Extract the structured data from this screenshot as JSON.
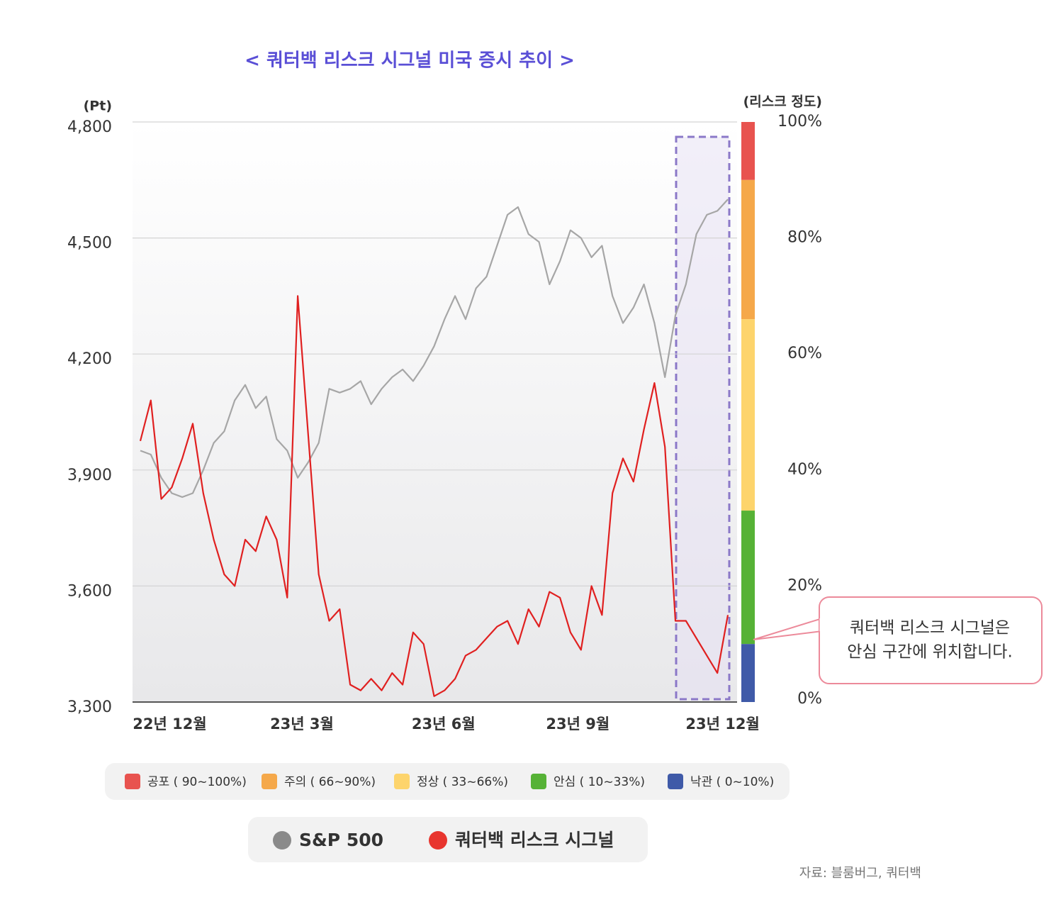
{
  "chart_data": {
    "type": "line",
    "title": "< 쿼터백 리스크 시그널 미국 증시 추이 >",
    "y_label": "(Pt)",
    "y2_label": "(리스크 정도)",
    "xlim": [
      0,
      56
    ],
    "xticks": [
      {
        "value": 2.8,
        "label": "22년 12월"
      },
      {
        "value": 15.4,
        "label": "23년 3월"
      },
      {
        "value": 28.9,
        "label": "23년  6월"
      },
      {
        "value": 41.7,
        "label": "23년 9월"
      },
      {
        "value": 55.5,
        "label": "23년 12월"
      }
    ],
    "ylim": [
      3300,
      4800
    ],
    "yticks": [
      {
        "value": 3300,
        "label": "3,300"
      },
      {
        "value": 3600,
        "label": "3,600"
      },
      {
        "value": 3900,
        "label": "3,900"
      },
      {
        "value": 4200,
        "label": "4,200"
      },
      {
        "value": 4500,
        "label": "4,500"
      },
      {
        "value": 4800,
        "label": "4,800"
      }
    ],
    "y2lim": [
      0,
      100
    ],
    "y2ticks": [
      {
        "value": 0,
        "label": "0%"
      },
      {
        "value": 20,
        "label": "20%"
      },
      {
        "value": 40,
        "label": "40%"
      },
      {
        "value": 60,
        "label": "60%"
      },
      {
        "value": 80,
        "label": "80%"
      },
      {
        "value": 100,
        "label": "100%"
      }
    ],
    "grid": true,
    "series": [
      {
        "name": "S&P 500",
        "color": "#a6a6a6",
        "axis": "y",
        "values": [
          3950,
          3940,
          3880,
          3840,
          3830,
          3840,
          3900,
          3970,
          4000,
          4080,
          4120,
          4060,
          4090,
          3980,
          3950,
          3880,
          3920,
          3970,
          4110,
          4100,
          4110,
          4130,
          4070,
          4110,
          4140,
          4160,
          4130,
          4170,
          4220,
          4290,
          4350,
          4290,
          4370,
          4400,
          4480,
          4560,
          4580,
          4510,
          4490,
          4380,
          4440,
          4520,
          4500,
          4450,
          4480,
          4350,
          4280,
          4320,
          4380,
          4280,
          4140,
          4300,
          4380,
          4510,
          4560,
          4570,
          4600
        ]
      },
      {
        "name": "쿼터백 리스크 시그널",
        "color": "#e02020",
        "axis": "y2",
        "values": [
          45,
          52,
          35,
          37,
          42,
          48,
          36,
          28,
          22,
          20,
          28,
          26,
          32,
          28,
          18,
          70,
          46,
          22,
          14,
          16,
          3,
          2,
          4,
          2,
          5,
          3,
          12,
          10,
          1,
          2,
          4,
          8,
          9,
          11,
          13,
          14,
          10,
          16,
          13,
          19,
          18,
          12,
          9,
          20,
          15,
          36,
          42,
          38,
          47,
          55,
          44,
          14,
          14,
          11,
          8,
          5,
          15
        ]
      }
    ],
    "risk_bands": [
      {
        "label": "공포 ( 90~100%)",
        "color": "#e8534f",
        "from": 90,
        "to": 100
      },
      {
        "label": "주의 ( 66~90%)",
        "color": "#f5a84a",
        "from": 66,
        "to": 90
      },
      {
        "label": "정상 ( 33~66%)",
        "color": "#fdd46c",
        "from": 33,
        "to": 66
      },
      {
        "label": "안심 ( 10~33%)",
        "color": "#56b236",
        "from": 10,
        "to": 33
      },
      {
        "label": "낙관 ( 0~10%)",
        "color": "#3f5aa8",
        "from": 0,
        "to": 10
      }
    ],
    "annotation": [
      "쿼터백 리스크 시그널은",
      "안심 구간에 위치합니다."
    ],
    "source": "자료: 블룸버그, 쿼터백"
  }
}
